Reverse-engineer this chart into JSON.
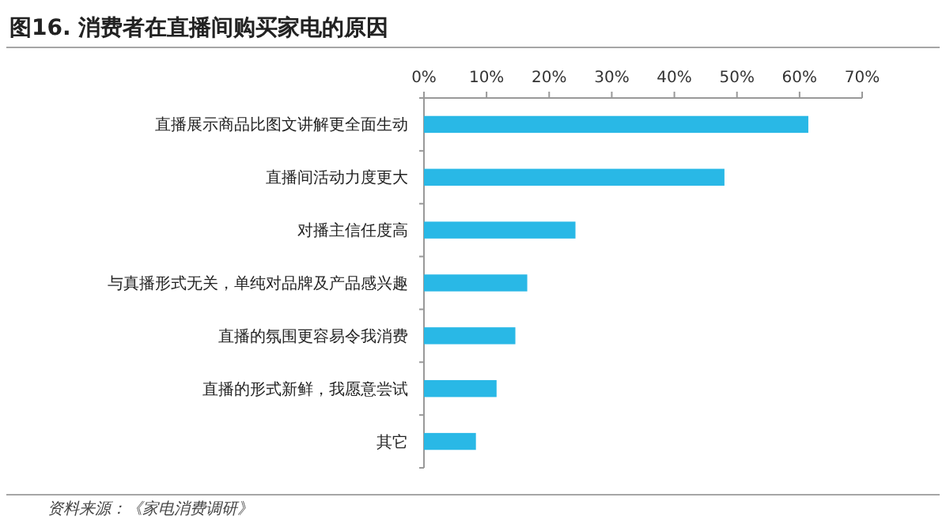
{
  "chart_data": {
    "type": "bar",
    "orientation": "horizontal",
    "title": "图16. 消费者在直播间购买家电的原因",
    "categories": [
      "直播展示商品比图文讲解更全面生动",
      "直播间活动力度更大",
      "对播主信任度高",
      "与真播形式无关，单纯对品牌及产品感兴趣",
      "直播的氛围更容易令我消费",
      "直播的形式新鲜，我愿意尝试",
      "其它"
    ],
    "values": [
      61.4,
      48.0,
      24.2,
      16.5,
      14.6,
      11.6,
      8.3
    ],
    "color": "#29b8e6",
    "xlim": [
      0,
      70
    ],
    "xticks": [
      {
        "value": 0,
        "label": "0%"
      },
      {
        "value": 10,
        "label": "10%"
      },
      {
        "value": 20,
        "label": "20%"
      },
      {
        "value": 30,
        "label": "30%"
      },
      {
        "value": 40,
        "label": "40%"
      },
      {
        "value": 50,
        "label": "50%"
      },
      {
        "value": 60,
        "label": "60%"
      },
      {
        "value": 70,
        "label": "70%"
      }
    ],
    "grid": false,
    "annotations": [
      "资料来源：《家电消费调研》"
    ]
  }
}
